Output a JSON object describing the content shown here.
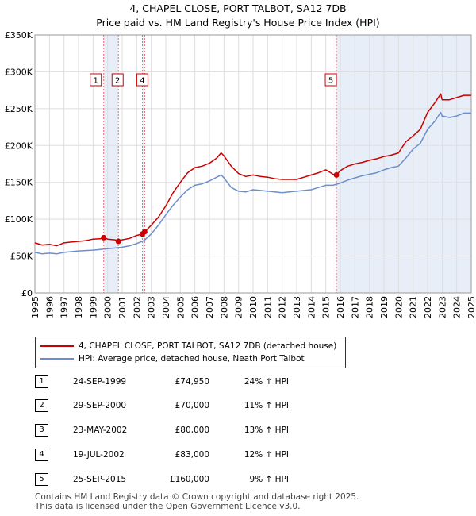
{
  "title": {
    "line1": "4, CHAPEL CLOSE, PORT TALBOT, SA12 7DB",
    "line2": "Price paid vs. HM Land Registry's House Price Index (HPI)"
  },
  "chart_data": {
    "type": "line",
    "title": "4, CHAPEL CLOSE, PORT TALBOT, SA12 7DB — Price paid vs. HM Land Registry's House Price Index (HPI)",
    "xlabel": "",
    "ylabel": "",
    "xlim": [
      1995,
      2025
    ],
    "ylim": [
      0,
      350000
    ],
    "yticks": [
      0,
      50000,
      100000,
      150000,
      200000,
      250000,
      300000,
      350000
    ],
    "ytick_labels": [
      "£0",
      "£50K",
      "£100K",
      "£150K",
      "£200K",
      "£250K",
      "£300K",
      "£350K"
    ],
    "xticks": [
      1995,
      1996,
      1997,
      1998,
      1999,
      2000,
      2001,
      2002,
      2003,
      2004,
      2005,
      2006,
      2007,
      2008,
      2009,
      2010,
      2011,
      2012,
      2013,
      2014,
      2015,
      2016,
      2017,
      2018,
      2019,
      2020,
      2021,
      2022,
      2023,
      2024,
      2025
    ],
    "grid": true,
    "series": [
      {
        "name": "4, CHAPEL CLOSE, PORT TALBOT, SA12 7DB (detached house)",
        "color": "#cc0000",
        "x": [
          1995.0,
          1995.5,
          1996.0,
          1996.5,
          1997.0,
          1997.5,
          1998.0,
          1998.5,
          1999.0,
          1999.5,
          1999.73,
          2000.0,
          2000.5,
          2000.74,
          2001.0,
          2001.5,
          2002.0,
          2002.39,
          2002.55,
          2003.0,
          2003.5,
          2004.0,
          2004.5,
          2005.0,
          2005.5,
          2006.0,
          2006.5,
          2007.0,
          2007.5,
          2007.8,
          2008.0,
          2008.5,
          2009.0,
          2009.5,
          2010.0,
          2010.5,
          2011.0,
          2011.5,
          2012.0,
          2012.5,
          2013.0,
          2013.5,
          2014.0,
          2014.5,
          2015.0,
          2015.5,
          2015.73,
          2016.0,
          2016.5,
          2017.0,
          2017.5,
          2018.0,
          2018.5,
          2019.0,
          2019.5,
          2020.0,
          2020.5,
          2021.0,
          2021.5,
          2022.0,
          2022.5,
          2022.9,
          2023.0,
          2023.5,
          2024.0,
          2024.5,
          2025.0
        ],
        "values": [
          68000,
          65000,
          66000,
          64000,
          68000,
          69000,
          70000,
          71000,
          73000,
          73500,
          74950,
          73000,
          72000,
          70000,
          72000,
          74000,
          78000,
          80000,
          83000,
          92000,
          103000,
          118000,
          136000,
          150000,
          163000,
          170000,
          172000,
          176000,
          183000,
          190000,
          186000,
          172000,
          162000,
          158000,
          160000,
          158000,
          157000,
          155000,
          154000,
          154000,
          154000,
          157000,
          160000,
          163000,
          167000,
          161000,
          160000,
          166000,
          172000,
          175000,
          177000,
          180000,
          182000,
          185000,
          187000,
          190000,
          205000,
          213000,
          222000,
          245000,
          258000,
          270000,
          262000,
          262000,
          265000,
          268000,
          268000
        ]
      },
      {
        "name": "HPI: Average price, detached house, Neath Port Talbot",
        "color": "#6b8fcc",
        "x": [
          1995.0,
          1995.5,
          1996.0,
          1996.5,
          1997.0,
          1997.5,
          1998.0,
          1998.5,
          1999.0,
          1999.5,
          2000.0,
          2000.5,
          2001.0,
          2001.5,
          2002.0,
          2002.5,
          2003.0,
          2003.5,
          2004.0,
          2004.5,
          2005.0,
          2005.5,
          2006.0,
          2006.5,
          2007.0,
          2007.5,
          2007.8,
          2008.0,
          2008.5,
          2009.0,
          2009.5,
          2010.0,
          2010.5,
          2011.0,
          2011.5,
          2012.0,
          2012.5,
          2013.0,
          2013.5,
          2014.0,
          2014.5,
          2015.0,
          2015.5,
          2016.0,
          2016.5,
          2017.0,
          2017.5,
          2018.0,
          2018.5,
          2019.0,
          2019.5,
          2020.0,
          2020.5,
          2021.0,
          2021.5,
          2022.0,
          2022.5,
          2022.9,
          2023.0,
          2023.5,
          2024.0,
          2024.5,
          2025.0
        ],
        "values": [
          55000,
          53000,
          54000,
          53000,
          55000,
          56000,
          57000,
          57500,
          58000,
          59000,
          60000,
          61000,
          62000,
          64000,
          67000,
          71000,
          80000,
          92000,
          106000,
          119000,
          130000,
          140000,
          146000,
          148000,
          152000,
          157000,
          160000,
          156000,
          143000,
          138000,
          137000,
          140000,
          139000,
          138000,
          137000,
          136000,
          137000,
          138000,
          139000,
          140000,
          143000,
          146000,
          146000,
          149000,
          153000,
          156000,
          159000,
          161000,
          163000,
          167000,
          170000,
          172000,
          183000,
          195000,
          203000,
          222000,
          233000,
          245000,
          240000,
          238000,
          240000,
          244000,
          244000
        ]
      }
    ],
    "sale_markers": [
      {
        "label": "1",
        "x": 1999.73,
        "value": 74950
      },
      {
        "label": "2",
        "x": 2000.74,
        "value": 70000
      },
      {
        "label": "3",
        "x": 2002.39,
        "value": 80000
      },
      {
        "label": "4",
        "x": 2002.55,
        "value": 83000
      },
      {
        "label": "5",
        "x": 2015.73,
        "value": 160000
      }
    ],
    "marker_boxes": [
      "1",
      "2",
      "4",
      "5"
    ],
    "shaded_periods": [
      [
        1999.73,
        2000.74
      ],
      [
        2002.39,
        2002.55
      ],
      [
        2015.73,
        2025.0
      ]
    ]
  },
  "legend": {
    "items": [
      {
        "label": "4, CHAPEL CLOSE, PORT TALBOT, SA12 7DB (detached house)",
        "color": "#cc0000"
      },
      {
        "label": "HPI: Average price, detached house, Neath Port Talbot",
        "color": "#6b8fcc"
      }
    ]
  },
  "sales": [
    {
      "num": "1",
      "date": "24-SEP-1999",
      "price": "£74,950",
      "hpi": "24% ↑ HPI"
    },
    {
      "num": "2",
      "date": "29-SEP-2000",
      "price": "£70,000",
      "hpi": "11% ↑ HPI"
    },
    {
      "num": "3",
      "date": "23-MAY-2002",
      "price": "£80,000",
      "hpi": "13% ↑ HPI"
    },
    {
      "num": "4",
      "date": "19-JUL-2002",
      "price": "£83,000",
      "hpi": "12% ↑ HPI"
    },
    {
      "num": "5",
      "date": "25-SEP-2015",
      "price": "£160,000",
      "hpi": "9% ↑ HPI"
    }
  ],
  "footer": {
    "line1": "Contains HM Land Registry data © Crown copyright and database right 2025.",
    "line2": "This data is licensed under the Open Government Licence v3.0."
  }
}
